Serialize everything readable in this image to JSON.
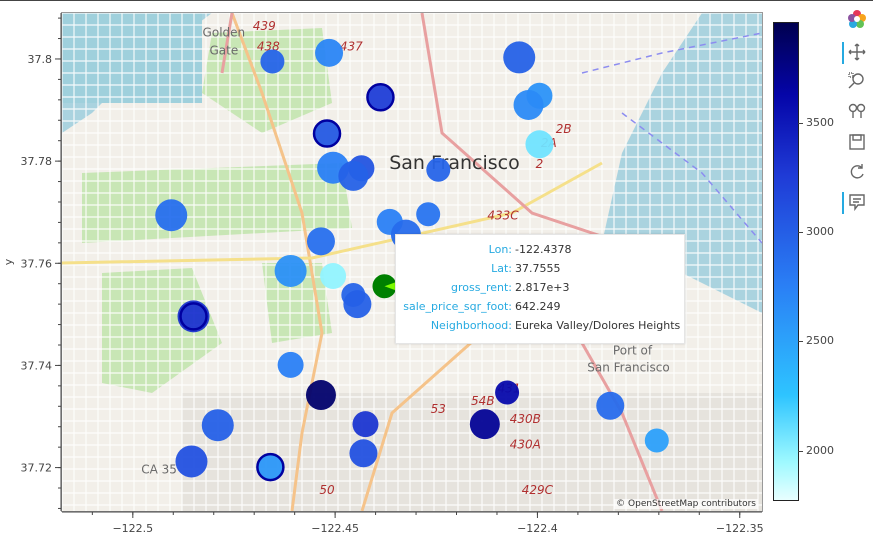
{
  "chart_data": {
    "type": "scatter",
    "title": "",
    "xlabel": "",
    "ylabel": "y",
    "xlim": [
      -122.5175,
      -122.3445
    ],
    "ylim": [
      37.7115,
      37.809
    ],
    "xticks": [
      -122.5,
      -122.45,
      -122.4,
      -122.35
    ],
    "xtick_labels": [
      "−122.5",
      "−122.45",
      "−122.4",
      "−122.35"
    ],
    "yticks": [
      37.72,
      37.74,
      37.76,
      37.78,
      37.8
    ],
    "ytick_labels": [
      "37.72",
      "37.74",
      "37.76",
      "37.78",
      "37.8"
    ],
    "colorbar": {
      "range": [
        1780,
        3960
      ],
      "ticks": [
        2000,
        2500,
        3000,
        3500
      ],
      "tick_labels": [
        "2000",
        "2500",
        "3000",
        "3500"
      ]
    },
    "points": [
      {
        "x": -122.4655,
        "y": 37.7995,
        "value": 2960
      },
      {
        "x": -122.4515,
        "y": 37.8012,
        "value": 2720
      },
      {
        "x": -122.4045,
        "y": 37.8003,
        "value": 2980
      },
      {
        "x": -122.3995,
        "y": 37.7928,
        "value": 2620
      },
      {
        "x": -122.4022,
        "y": 37.791,
        "value": 2680
      },
      {
        "x": -122.4388,
        "y": 37.7925,
        "value": 3250
      },
      {
        "x": -122.452,
        "y": 37.7854,
        "value": 3050
      },
      {
        "x": -122.4505,
        "y": 37.7787,
        "value": 2760
      },
      {
        "x": -122.4435,
        "y": 37.7786,
        "value": 3080
      },
      {
        "x": -122.4455,
        "y": 37.7771,
        "value": 2980
      },
      {
        "x": -122.4245,
        "y": 37.7783,
        "value": 2960
      },
      {
        "x": -122.3995,
        "y": 37.7833,
        "value": 2080
      },
      {
        "x": -122.4905,
        "y": 37.7694,
        "value": 2880
      },
      {
        "x": -122.4365,
        "y": 37.7681,
        "value": 2760
      },
      {
        "x": -122.4325,
        "y": 37.7656,
        "value": 2910
      },
      {
        "x": -122.427,
        "y": 37.7696,
        "value": 2840
      },
      {
        "x": -122.4535,
        "y": 37.7643,
        "value": 2880
      },
      {
        "x": -122.461,
        "y": 37.7585,
        "value": 2640
      },
      {
        "x": -122.4505,
        "y": 37.7575,
        "value": 1990
      },
      {
        "x": -122.4378,
        "y": 37.7555,
        "value": 2817,
        "sale_price_sqr_foot": 642.249,
        "neighborhood": "Eureka Valley/Dolores Heights",
        "hovered": true
      },
      {
        "x": -122.4455,
        "y": 37.7538,
        "value": 2960
      },
      {
        "x": -122.4445,
        "y": 37.752,
        "value": 2990
      },
      {
        "x": -122.485,
        "y": 37.7496,
        "value": 3320
      },
      {
        "x": -122.461,
        "y": 37.7401,
        "value": 2760
      },
      {
        "x": -122.4535,
        "y": 37.7342,
        "value": 3850
      },
      {
        "x": -122.4075,
        "y": 37.7347,
        "value": 3600
      },
      {
        "x": -122.382,
        "y": 37.7321,
        "value": 2900
      },
      {
        "x": -122.479,
        "y": 37.7283,
        "value": 2990
      },
      {
        "x": -122.4425,
        "y": 37.7285,
        "value": 3300
      },
      {
        "x": -122.413,
        "y": 37.7285,
        "value": 3700
      },
      {
        "x": -122.3705,
        "y": 37.7253,
        "value": 2520
      },
      {
        "x": -122.443,
        "y": 37.7228,
        "value": 3100
      },
      {
        "x": -122.4855,
        "y": 37.7212,
        "value": 3100
      },
      {
        "x": -122.466,
        "y": 37.7201,
        "value": 2590
      }
    ]
  },
  "tooltip": {
    "rows": [
      {
        "key": "Lon:",
        "value": "-122.4378"
      },
      {
        "key": "Lat:",
        "value": "37.7555"
      },
      {
        "key": "gross_rent:",
        "value": "2.817e+3"
      },
      {
        "key": "sale_price_sqr_foot:",
        "value": "642.249"
      },
      {
        "key": "Neighborhood:",
        "value": "Eureka Valley/Dolores Heights"
      }
    ]
  },
  "map": {
    "attribution": "© OpenStreetMap contributors",
    "labels": [
      {
        "text": "Golden",
        "x": -122.4775,
        "y": 37.8044
      },
      {
        "text": "Gate",
        "x": -122.4775,
        "y": 37.8009
      },
      {
        "text": "San Francisco",
        "x": -122.4205,
        "y": 37.7785
      },
      {
        "text": "Port of",
        "x": -122.3765,
        "y": 37.7421
      },
      {
        "text": "San Francisco",
        "x": -122.3775,
        "y": 37.7388
      },
      {
        "text": "439",
        "x": -122.4675,
        "y": 37.8057
      },
      {
        "text": "438",
        "x": -122.4665,
        "y": 37.8017
      },
      {
        "text": "437",
        "x": -122.446,
        "y": 37.8017
      },
      {
        "text": "2B",
        "x": -122.3935,
        "y": 37.7855
      },
      {
        "text": "2A",
        "x": -122.3972,
        "y": 37.7828
      },
      {
        "text": "2",
        "x": -122.3995,
        "y": 37.7787
      },
      {
        "text": "433C",
        "x": -122.4085,
        "y": 37.7686
      },
      {
        "text": "53",
        "x": -122.4245,
        "y": 37.7307
      },
      {
        "text": "54B",
        "x": -122.4135,
        "y": 37.7323
      },
      {
        "text": "431",
        "x": -122.407,
        "y": 37.7347
      },
      {
        "text": "430B",
        "x": -122.403,
        "y": 37.7287
      },
      {
        "text": "430A",
        "x": -122.403,
        "y": 37.7237
      },
      {
        "text": "429C",
        "x": -122.4,
        "y": 37.7148
      },
      {
        "text": "50",
        "x": -122.452,
        "y": 37.7148
      },
      {
        "text": "CA 35",
        "x": -122.4935,
        "y": 37.7188
      }
    ]
  },
  "toolbar": {
    "tools": [
      {
        "name": "bokeh-logo-icon"
      },
      {
        "name": "pan-tool-icon"
      },
      {
        "name": "box-zoom-tool-icon"
      },
      {
        "name": "wheel-zoom-tool-icon"
      },
      {
        "name": "save-tool-icon"
      },
      {
        "name": "reset-tool-icon"
      },
      {
        "name": "hover-tool-icon"
      }
    ]
  },
  "colors": {
    "accent": "#26aae1",
    "hover_point": "#008000",
    "hover_wedge": "#7cfc00"
  }
}
